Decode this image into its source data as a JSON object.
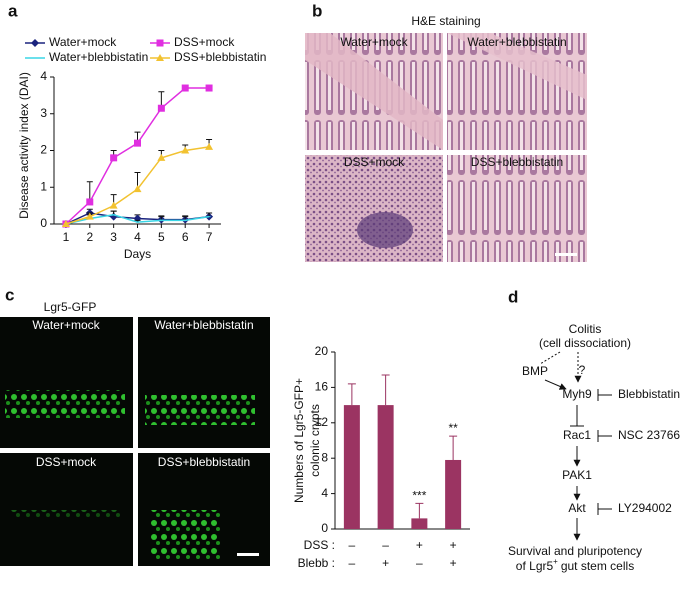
{
  "panel_labels": [
    "a",
    "b",
    "c",
    "d"
  ],
  "chart_data": [
    {
      "type": "line",
      "xlabel": "Days",
      "ylabel": "Disease activity index (DAI)",
      "x": [
        1,
        2,
        3,
        4,
        5,
        6,
        7
      ],
      "xlim": [
        0.5,
        7.5
      ],
      "xticks": [
        1,
        2,
        3,
        4,
        5,
        6,
        7
      ],
      "ylim": [
        0,
        4
      ],
      "yticks": [
        0,
        1,
        2,
        3,
        4
      ],
      "series": [
        {
          "name": "Water+mock",
          "color": "#1a237e",
          "marker": "diamond",
          "values": [
            0,
            0.3,
            0.2,
            0.15,
            0.12,
            0.12,
            0.2
          ],
          "errors": [
            0,
            0.1,
            0.15,
            0.1,
            0.1,
            0.1,
            0.1
          ]
        },
        {
          "name": "Water+blebbistatin",
          "color": "#3ad6e6",
          "marker": "none",
          "values": [
            0,
            0.15,
            0.25,
            0.05,
            0.1,
            0.1,
            0.2
          ],
          "errors": [
            0,
            0.1,
            0.1,
            0.05,
            0.1,
            0.1,
            0.1
          ]
        },
        {
          "name": "DSS+mock",
          "color": "#e02ee0",
          "marker": "square",
          "values": [
            0,
            0.6,
            1.8,
            2.2,
            3.15,
            3.7,
            3.7
          ],
          "errors": [
            0,
            0.55,
            0.2,
            0.3,
            0.45,
            0,
            0
          ]
        },
        {
          "name": "DSS+blebbistatin",
          "color": "#f2c230",
          "marker": "triangle",
          "values": [
            0,
            0.2,
            0.5,
            0.95,
            1.8,
            2.0,
            2.1
          ],
          "errors": [
            0,
            0.1,
            0.3,
            0.45,
            0.2,
            0.15,
            0.2
          ]
        }
      ]
    },
    {
      "type": "bar",
      "ylabel": [
        "Numbers of Lgr5-GFP+",
        "colonic crypts"
      ],
      "categories": [
        null,
        null,
        null,
        null
      ],
      "values": [
        14,
        14,
        1.2,
        7.8
      ],
      "errors": [
        2.4,
        3.4,
        1.7,
        2.7
      ],
      "annotations": [
        null,
        null,
        "***",
        "**"
      ],
      "color": "#9b3462",
      "ylim": [
        0,
        20
      ],
      "yticks": [
        0,
        4,
        8,
        12,
        16,
        20
      ],
      "condition_rows": [
        {
          "label": "DSS :",
          "marks": [
            "–",
            "–",
            "+",
            "+"
          ]
        },
        {
          "label": "Blebb :",
          "marks": [
            "–",
            "+",
            "–",
            "+"
          ]
        }
      ]
    }
  ],
  "he_panel": {
    "title": "H&E staining",
    "images": [
      "Water+mock",
      "Water+blebbistatin",
      "DSS+mock",
      "DSS+blebbistatin"
    ]
  },
  "gfp_panel": {
    "title": "Lgr5-GFP",
    "images": [
      "Water+mock",
      "Water+blebbistatin",
      "DSS+mock",
      "DSS+blebbistatin"
    ]
  },
  "pathway": {
    "nodes": [
      "Colitis",
      "(cell dissociation)",
      "BMP",
      "?",
      "Myh9",
      "Blebbistatin",
      "Rac1",
      "NSC 23766",
      "PAK1",
      "Akt",
      "LY294002",
      "Survival and pluripotency"
    ],
    "outcome_line": [
      "of Lgr5",
      "+",
      "gut stem cells"
    ]
  }
}
